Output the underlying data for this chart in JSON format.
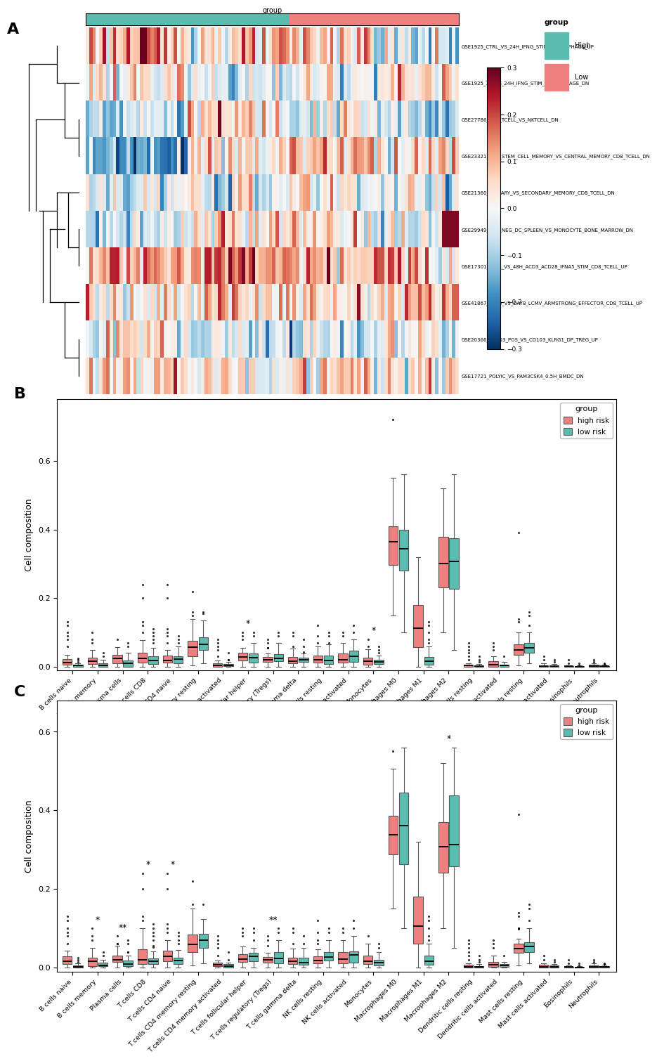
{
  "heatmap_pathways": [
    "GSE1925_CTRL_VS_24H_IFNG_STIM_MACROPHAGE_UP",
    "GSE1925_3H_VS_24H_IFNG_STIM_MACROPHAGE_DN",
    "GSE27786_CD4_TCELL_VS_NKTCELL_DN",
    "GSE23321_CD8_STEM_CELL_MEMORY_VS_CENTRAL_MEMORY_CD8_TCELL_DN",
    "GSE21360_PRIMARY_VS_SECONDARY_MEMORY_CD8_TCELL_DN",
    "GSE29949_CD8_NEG_DC_SPLEEN_VS_MONOCYTE_BONE_MARROW_DN",
    "GSE17301_CTRL_VS_48H_ACD3_ACD28_IFNA5_STIM_CD8_TCELL_UP",
    "GSE41867_DAY6_VS_DAY8_LCMV_ARMSTRONG_EFFECTOR_CD8_TCELL_UP",
    "GSE20366_CD103_POS_VS_CD103_KLRG1_DP_TREG_UP",
    "GSE17721_POLYIC_VS_PAM3CSK4_0.5H_BMDC_DN"
  ],
  "n_high": 50,
  "n_low": 60,
  "high_color": "#F08080",
  "low_color": "#5BBCB0",
  "high_group_color": "#F08080",
  "low_group_color": "#5BBCB0",
  "heatmap_vmin": -0.3,
  "heatmap_vmax": 0.3,
  "cell_types": [
    "B cells naive",
    "B cells memory",
    "Plasma cells",
    "T cells CD8",
    "T cells CD4 naive",
    "T cells CD4 memory resting",
    "T cells CD4 memory activated",
    "T cells follicular helper",
    "T cells regulatory (Tregs)",
    "T cells gamma delta",
    "NK cells resting",
    "NK cells activated",
    "Monocytes",
    "Macrophages M0",
    "Macrophages M1",
    "Macrophages M2",
    "Dendritic cells resting",
    "Dendritic cells activated",
    "Mast cells resting",
    "Mast cells activated",
    "Eosinophils",
    "Neutrophils"
  ],
  "panel_B_significance": {
    "T cells follicular helper": "*",
    "Monocytes": "*"
  },
  "panel_C_significance": {
    "B cells memory": "*",
    "Plasma cells": "**",
    "T cells CD8": "*",
    "T cells CD4 naive": "*",
    "T cells regulatory (Tregs)": "**",
    "Macrophages M2": "*"
  }
}
